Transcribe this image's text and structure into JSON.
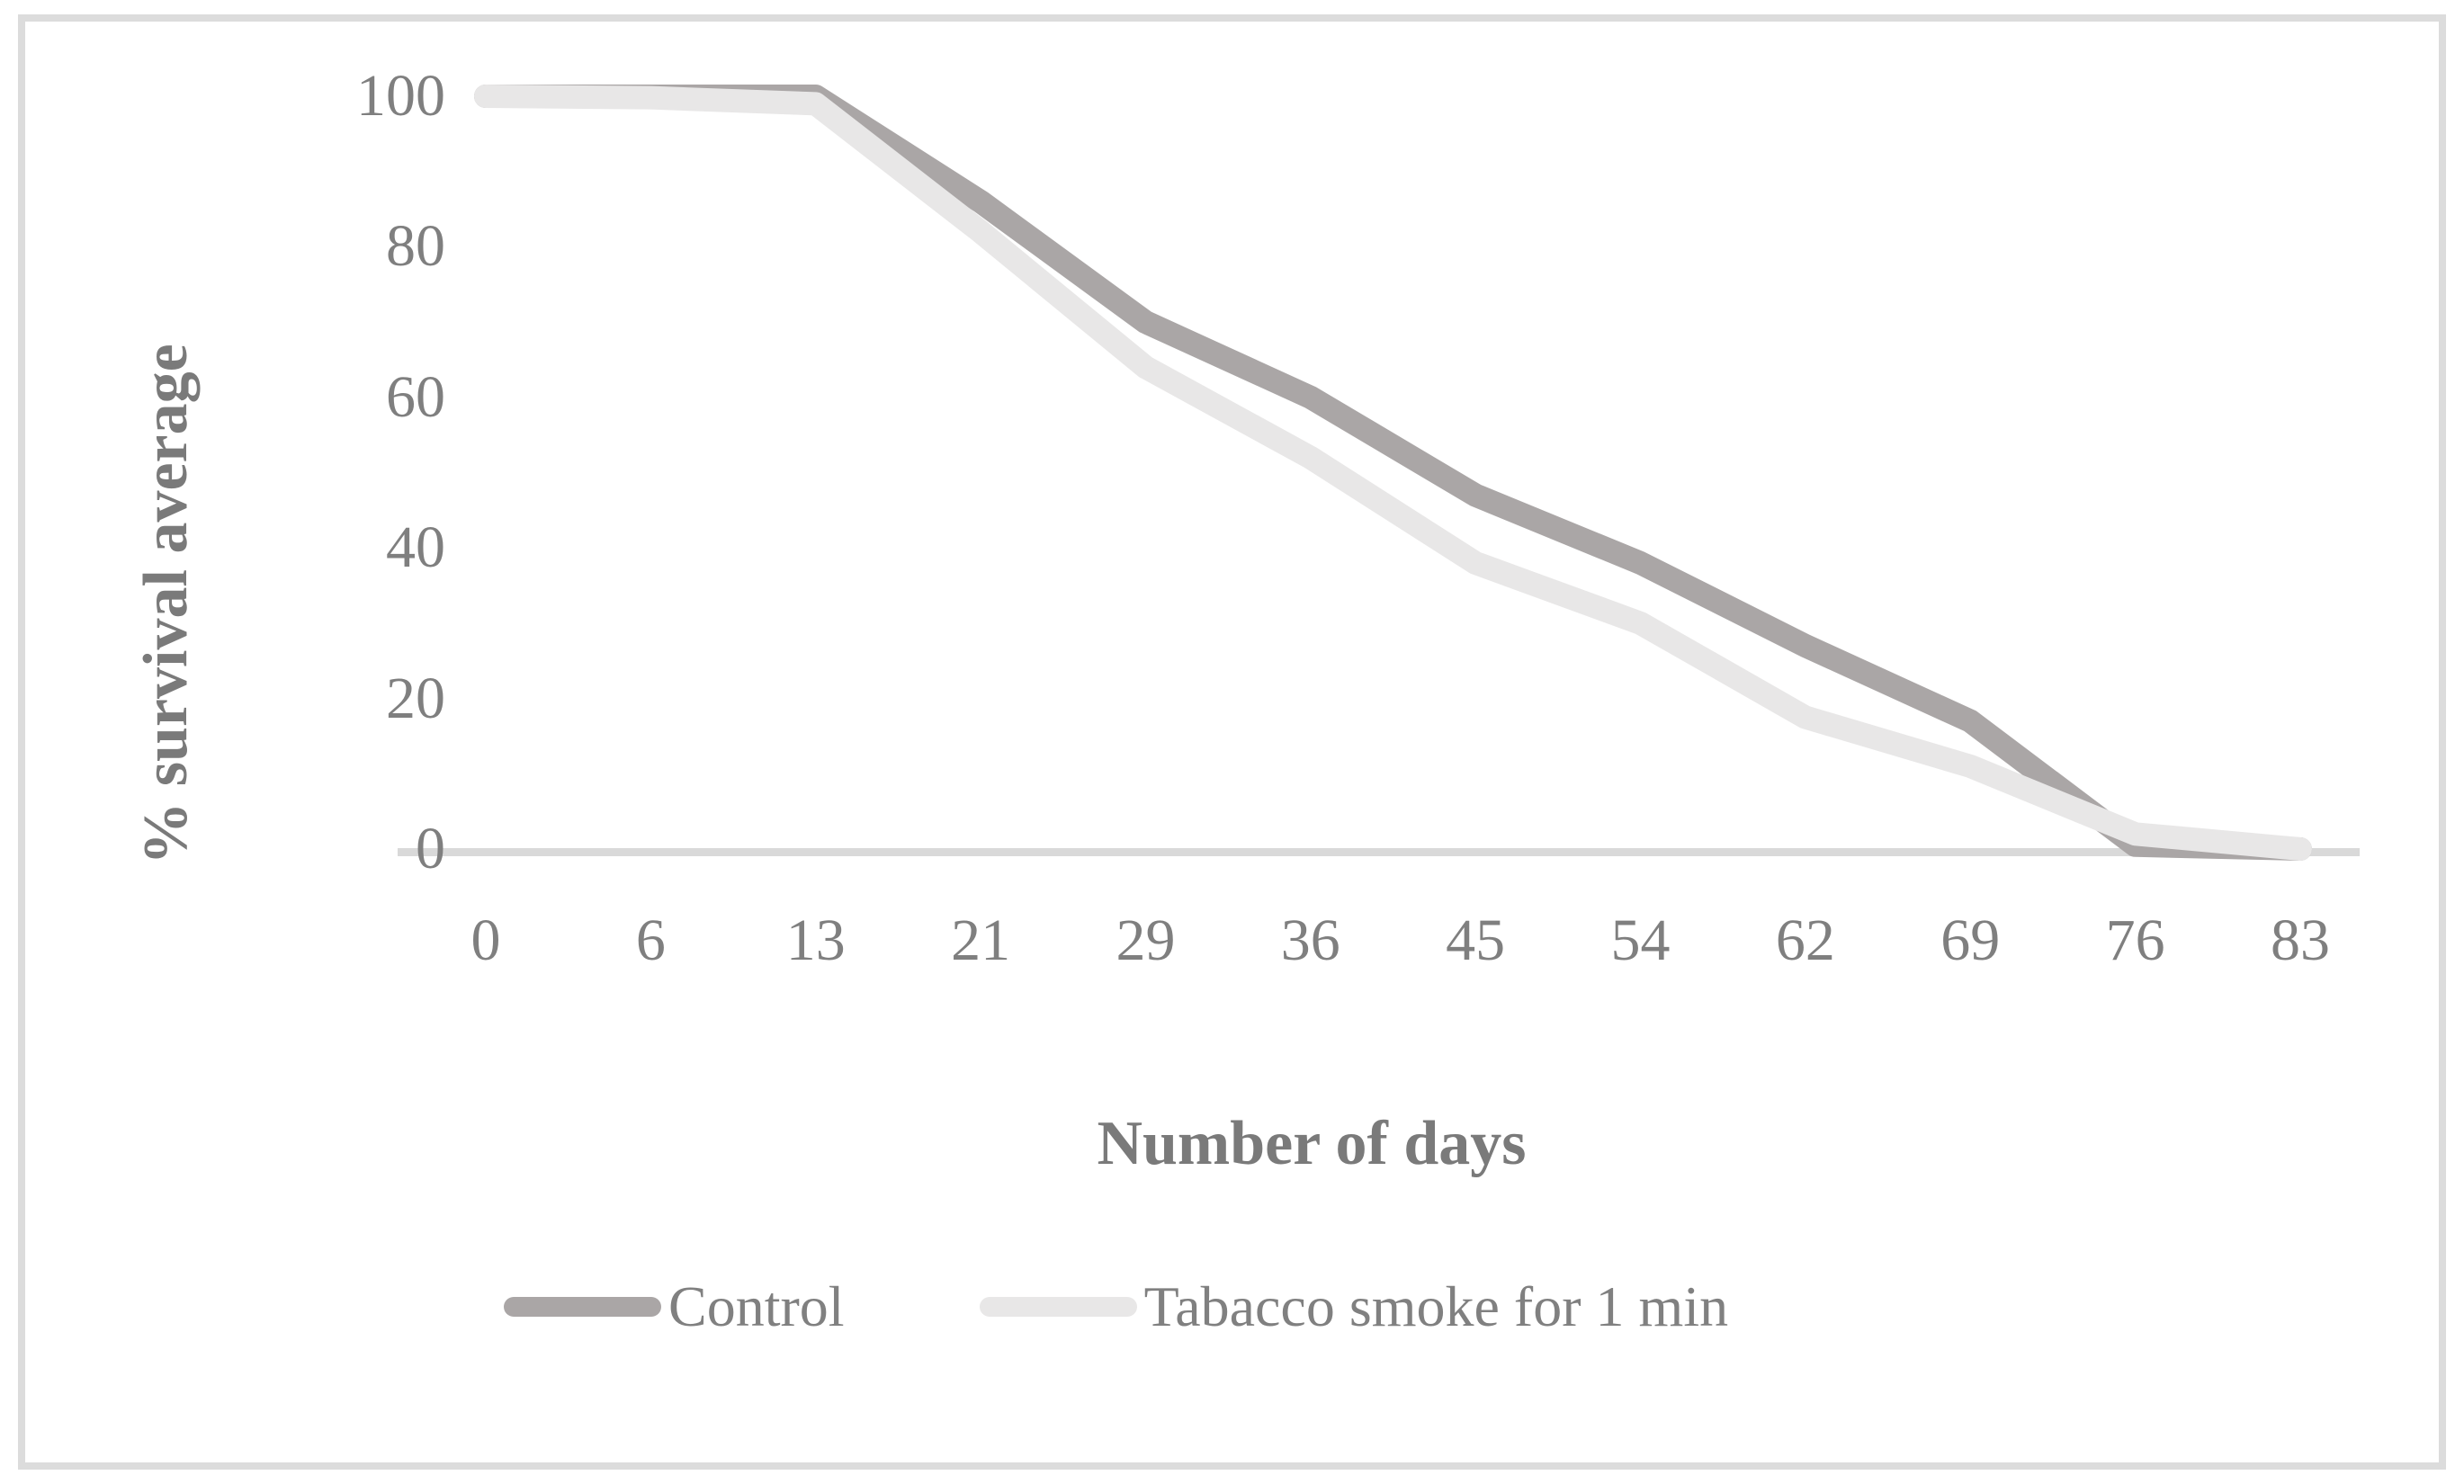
{
  "figure": {
    "background": "#ffffff",
    "frame_color": "#dcdcdc"
  },
  "chart_data": {
    "type": "line",
    "title": "",
    "xlabel": "Number of days",
    "ylabel": "% survival average",
    "categories": [
      0,
      6,
      13,
      21,
      29,
      36,
      45,
      54,
      62,
      69,
      76,
      83
    ],
    "yticks": [
      0,
      20,
      40,
      60,
      80,
      100
    ],
    "ylim": [
      0,
      100
    ],
    "grid": false,
    "legend_position": "bottom-center",
    "axis_line_color": "#d9d9d9",
    "tick_text_color": "#7f7f7f",
    "series": [
      {
        "name": "Control",
        "color": "#aaa6a6",
        "values": [
          100,
          100,
          100,
          86,
          70,
          60,
          47,
          38,
          27,
          17,
          0.5,
          0
        ]
      },
      {
        "name": "Tabacco smoke for 1 min",
        "color": "#e8e7e7",
        "values": [
          100,
          99.8,
          99,
          82,
          64,
          52,
          38,
          30,
          17.5,
          11,
          2,
          0
        ]
      }
    ]
  }
}
